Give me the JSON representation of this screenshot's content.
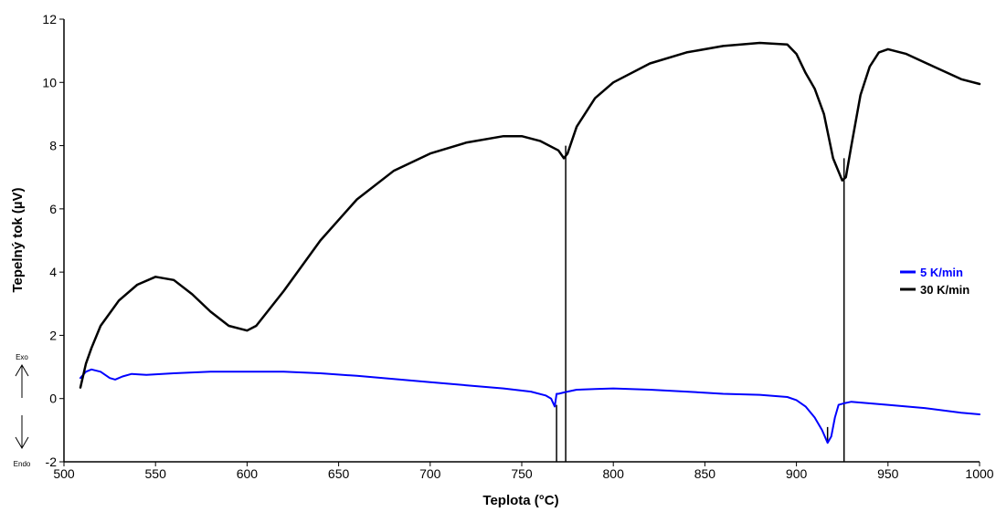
{
  "chart_data": {
    "type": "line",
    "title": "",
    "xlabel": "Teplota (°C)",
    "ylabel": "Tepelný tok (µV)",
    "xlim": [
      500,
      1000
    ],
    "ylim": [
      -2,
      12
    ],
    "xticks": [
      500,
      550,
      600,
      650,
      700,
      750,
      800,
      850,
      900,
      950,
      1000
    ],
    "yticks": [
      -2,
      0,
      2,
      4,
      6,
      8,
      10,
      12
    ],
    "grid": false,
    "legend_position": "right",
    "series": [
      {
        "name": "5 K/min",
        "color": "#0000ff",
        "x": [
          509,
          512,
          515,
          520,
          525,
          528,
          532,
          537,
          545,
          560,
          580,
          600,
          620,
          640,
          660,
          680,
          700,
          720,
          740,
          755,
          763,
          766,
          768,
          769,
          770,
          772,
          775,
          780,
          790,
          800,
          820,
          840,
          860,
          880,
          895,
          900,
          905,
          910,
          914,
          917,
          919,
          921,
          923,
          926,
          930,
          950,
          970,
          990,
          1000
        ],
        "y": [
          0.65,
          0.85,
          0.92,
          0.85,
          0.65,
          0.6,
          0.7,
          0.78,
          0.75,
          0.8,
          0.85,
          0.85,
          0.85,
          0.8,
          0.72,
          0.62,
          0.52,
          0.42,
          0.32,
          0.22,
          0.1,
          0.0,
          -0.25,
          0.15,
          0.15,
          0.18,
          0.22,
          0.28,
          0.3,
          0.32,
          0.28,
          0.22,
          0.15,
          0.12,
          0.05,
          -0.05,
          -0.25,
          -0.6,
          -1.0,
          -1.4,
          -1.2,
          -0.6,
          -0.2,
          -0.15,
          -0.1,
          -0.2,
          -0.3,
          -0.45,
          -0.5
        ]
      },
      {
        "name": "30 K/min",
        "color": "#000000",
        "x": [
          509,
          512,
          515,
          520,
          530,
          540,
          550,
          560,
          570,
          580,
          590,
          600,
          605,
          620,
          640,
          660,
          680,
          700,
          720,
          740,
          750,
          760,
          770,
          773,
          775,
          780,
          790,
          800,
          820,
          840,
          860,
          880,
          895,
          900,
          905,
          910,
          915,
          920,
          925,
          927,
          930,
          935,
          940,
          945,
          950,
          960,
          975,
          990,
          1000
        ],
        "y": [
          0.35,
          1.1,
          1.6,
          2.3,
          3.1,
          3.6,
          3.85,
          3.75,
          3.3,
          2.75,
          2.3,
          2.15,
          2.3,
          3.4,
          5.0,
          6.3,
          7.2,
          7.75,
          8.1,
          8.3,
          8.3,
          8.15,
          7.85,
          7.6,
          7.75,
          8.6,
          9.5,
          10.0,
          10.6,
          10.95,
          11.15,
          11.25,
          11.2,
          10.9,
          10.3,
          9.8,
          9.0,
          7.6,
          6.9,
          7.0,
          8.0,
          9.6,
          10.5,
          10.95,
          11.05,
          10.9,
          10.5,
          10.1,
          9.95
        ]
      }
    ],
    "markers": [
      {
        "x": 769,
        "y_top": -0.2,
        "y_bottom": -2
      },
      {
        "x": 774,
        "y_top": 8.0,
        "y_bottom": -2
      },
      {
        "x": 917,
        "y_top": -0.9,
        "y_bottom": -1.4
      },
      {
        "x": 926,
        "y_top": 7.6,
        "y_bottom": -2
      }
    ],
    "annotations": {
      "exo": "Exo",
      "endo": "Endo"
    }
  }
}
